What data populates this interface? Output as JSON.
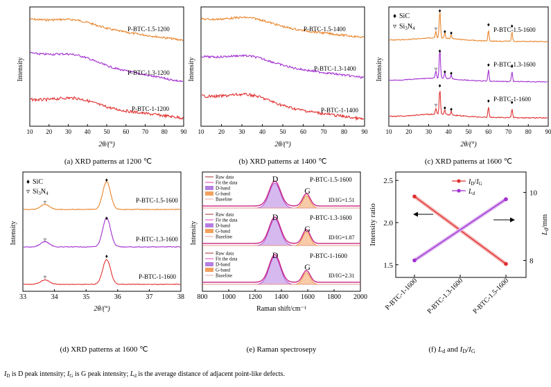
{
  "colors": {
    "orange": "#e8842a",
    "purple": "#a22fd0",
    "red": "#e02f2f",
    "grid": "#888888"
  },
  "panels": {
    "a": {
      "caption": "(a) XRD patterns at 1200 ℃",
      "ylabel": "Intensity",
      "xlabel": "2θ/(°)",
      "xticks": [
        "10",
        "20",
        "30",
        "40",
        "50",
        "60",
        "70",
        "80",
        "90"
      ],
      "series": [
        "P-BTC-1.5-1200",
        "P-BTC-1.3-1200",
        "P-BTC-1-1200"
      ]
    },
    "b": {
      "caption": "(b) XRD patterns at 1400 ℃",
      "ylabel": "Intensity",
      "xlabel": "2θ/(°)",
      "xticks": [
        "10",
        "20",
        "30",
        "40",
        "50",
        "60",
        "70",
        "80",
        "90"
      ],
      "series": [
        "P-BTC-1.5-1400",
        "P-BTC-1.3-1400",
        "P-BTC-1-1400"
      ]
    },
    "c": {
      "caption": "(c) XRD patterns at 1600 ℃",
      "ylabel": "Intensity",
      "xlabel": "2θ/(°)",
      "xticks": [
        "10",
        "20",
        "30",
        "40",
        "50",
        "60",
        "70",
        "80",
        "90"
      ],
      "legend_sic": "SiC",
      "legend_si3n4": "Si3N4",
      "series": [
        "P-BTC-1.5-1600",
        "P-BTC-1.3-1600",
        "P-BTC-1-1600"
      ]
    },
    "d": {
      "caption": "(d) XRD patterns at 1600 ℃",
      "ylabel": "Intensity",
      "xlabel": "2θ/(°)",
      "xticks": [
        "33",
        "34",
        "35",
        "36",
        "37",
        "38"
      ],
      "legend_sic": "SiC",
      "legend_si3n4": "Si3N4",
      "series": [
        "P-BTC-1.5-1600",
        "P-BTC-1.3-1600",
        "P-BTC-1-1600"
      ]
    },
    "e": {
      "caption": "(e) Raman spectrosepy",
      "ylabel": "Intensity",
      "xlabel": "Raman shift/cm⁻¹",
      "xticks": [
        "800",
        "1000",
        "1200",
        "1400",
        "1600",
        "1800",
        "2000"
      ],
      "legend": [
        "Raw data",
        "Fit the data",
        "D-band",
        "G-band",
        "Baseline"
      ],
      "peak_d": "D",
      "peak_g": "G",
      "series": [
        {
          "name": "P-BTC-1.5-1600",
          "ratio": "ID/IG=1.51"
        },
        {
          "name": "P-BTC-1.3-1600",
          "ratio": "ID/IG=1.87"
        },
        {
          "name": "P-BTC-1-1600",
          "ratio": "ID/IG=2.31"
        }
      ]
    },
    "f": {
      "caption": "(f) Ld and ID/IG",
      "ylabel_left": "Intensity ratio",
      "ylabel_right": "Ld/mm",
      "yticks_left": [
        "1.5",
        "2.0",
        "2.5"
      ],
      "yticks_right": [
        "8",
        "10"
      ],
      "categories": [
        "P-BTC-1-1600",
        "P-BTC-1.3-1600",
        "P-BTC-1.5-1600"
      ],
      "legend": [
        "ID/IG",
        "Ld"
      ]
    }
  },
  "chart_data": [
    {
      "type": "line",
      "title": "",
      "xlabel": "2θ/(°)",
      "ylabel": "Intensity",
      "xlim": [
        10,
        90
      ],
      "series": [
        {
          "name": "P-BTC-1.5-1200"
        },
        {
          "name": "P-BTC-1.3-1200"
        },
        {
          "name": "P-BTC-1-1200"
        }
      ]
    },
    {
      "type": "line",
      "title": "",
      "xlabel": "2θ/(°)",
      "ylabel": "Intensity",
      "xlim": [
        10,
        90
      ],
      "series": [
        {
          "name": "P-BTC-1.5-1400"
        },
        {
          "name": "P-BTC-1.3-1400"
        },
        {
          "name": "P-BTC-1-1400"
        }
      ]
    },
    {
      "type": "line",
      "title": "",
      "xlabel": "2θ/(°)",
      "ylabel": "Intensity",
      "xlim": [
        10,
        90
      ],
      "peaks_sic": [
        35.6,
        38.1,
        41.3,
        60.0,
        71.8
      ],
      "peaks_si3n4": [
        33.6
      ],
      "series": [
        {
          "name": "P-BTC-1.5-1600"
        },
        {
          "name": "P-BTC-1.3-1600"
        },
        {
          "name": "P-BTC-1-1600"
        }
      ]
    },
    {
      "type": "line",
      "title": "",
      "xlabel": "2θ/(°)",
      "ylabel": "Intensity",
      "xlim": [
        33,
        38
      ],
      "peaks_sic": [
        35.65
      ],
      "peaks_si3n4": [
        33.7
      ],
      "series": [
        {
          "name": "P-BTC-1.5-1600"
        },
        {
          "name": "P-BTC-1.3-1600"
        },
        {
          "name": "P-BTC-1-1600"
        }
      ]
    },
    {
      "type": "line",
      "title": "",
      "xlabel": "Raman shift/cm⁻¹",
      "ylabel": "Intensity",
      "xlim": [
        800,
        2000
      ],
      "peak_d": 1350,
      "peak_g": 1590,
      "series": [
        {
          "name": "P-BTC-1.5-1600",
          "id_ig": 1.51
        },
        {
          "name": "P-BTC-1.3-1600",
          "id_ig": 1.87
        },
        {
          "name": "P-BTC-1-1600",
          "id_ig": 2.31
        }
      ]
    },
    {
      "type": "line",
      "title": "",
      "xlabel": "",
      "ylabel": "Intensity ratio",
      "categories": [
        "P-BTC-1-1600",
        "P-BTC-1.3-1600",
        "P-BTC-1.5-1600"
      ],
      "ylim": [
        1.35,
        2.6
      ],
      "ylim_right": [
        7.5,
        10.6
      ],
      "series": [
        {
          "name": "ID/IG",
          "axis": "left",
          "values": [
            2.31,
            1.87,
            1.51
          ]
        },
        {
          "name": "Ld",
          "axis": "right",
          "values": [
            8.0,
            9.0,
            9.8
          ]
        }
      ]
    }
  ],
  "footnote": "ID is D peak intensity; IG is G peak intensity; Ld is the average distance of adjacent point-like defects."
}
